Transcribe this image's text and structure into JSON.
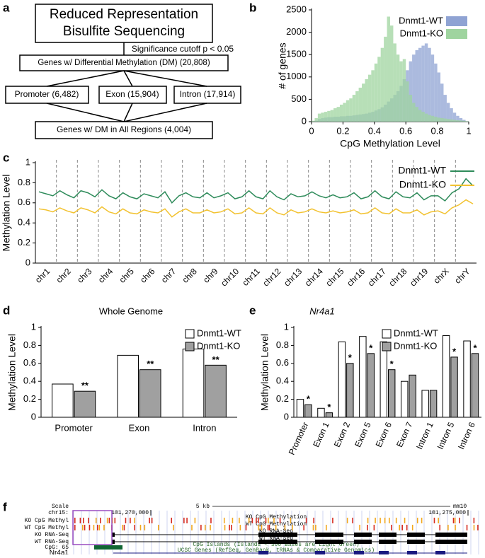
{
  "panels": [
    "a",
    "b",
    "c",
    "d",
    "e",
    "f"
  ],
  "flowchart": {
    "top": [
      "Reduced Representation",
      "Bisulfite Sequencing"
    ],
    "cutoff": "Significance cutoff p < 0.05",
    "dm": "Genes w/ Differential Methylation (DM) (20,808)",
    "regions": [
      "Promoter (6,482)",
      "Exon (15,904)",
      "Intron (17,914)"
    ],
    "all": "Genes w/ DM in All Regions (4,004)"
  },
  "chart_data": [
    {
      "type": "histogram",
      "xlabel": "CpG Methylation Level",
      "ylabel": "# of genes",
      "bins": [
        0,
        0.02,
        0.04,
        0.06,
        0.08,
        0.1,
        0.12,
        0.14,
        0.16,
        0.18,
        0.2,
        0.22,
        0.24,
        0.26,
        0.28,
        0.3,
        0.32,
        0.34,
        0.36,
        0.38,
        0.4,
        0.42,
        0.44,
        0.46,
        0.48,
        0.5,
        0.52,
        0.54,
        0.56,
        0.58,
        0.6,
        0.62,
        0.64,
        0.66,
        0.68,
        0.7,
        0.72,
        0.74,
        0.76,
        0.78,
        0.8,
        0.82,
        0.84,
        0.86,
        0.88,
        0.9,
        0.92,
        0.94,
        0.96,
        0.98,
        1
      ],
      "series": [
        {
          "name": "Dnmt1-WT",
          "color": "#8fa3d3",
          "values": [
            5,
            20,
            60,
            80,
            90,
            100,
            100,
            110,
            110,
            120,
            120,
            130,
            130,
            140,
            150,
            160,
            170,
            180,
            200,
            220,
            250,
            280,
            320,
            380,
            450,
            520,
            600,
            680,
            800,
            950,
            1150,
            1350,
            1500,
            1600,
            1650,
            1700,
            1750,
            1650,
            1500,
            1300,
            1100,
            850,
            600,
            420,
            300,
            200,
            130,
            80,
            40,
            10
          ]
        },
        {
          "name": "Dnmt1-KO",
          "color": "#9fd49f",
          "values": [
            20,
            80,
            180,
            200,
            220,
            240,
            260,
            300,
            330,
            380,
            420,
            480,
            520,
            600,
            680,
            760,
            850,
            950,
            1050,
            1150,
            1300,
            1450,
            1650,
            1900,
            2350,
            2150,
            1750,
            1500,
            1350,
            1400,
            900,
            600,
            420,
            330,
            260,
            220,
            180,
            150,
            130,
            110,
            90,
            80,
            70,
            60,
            50,
            40,
            30,
            25,
            20,
            10
          ]
        }
      ],
      "xlim": [
        0,
        1
      ],
      "xticks": [
        0,
        0.2,
        0.4,
        0.6,
        0.8,
        1
      ],
      "ylim": [
        0,
        2500
      ],
      "yticks": [
        0,
        500,
        1000,
        1500,
        2000,
        2500
      ],
      "legend": "upper right"
    },
    {
      "type": "line",
      "ylabel": "Methylation Level",
      "categories": [
        "chr1",
        "chr2",
        "chr3",
        "chr4",
        "chr5",
        "chr6",
        "chr7",
        "chr8",
        "chr9",
        "chr10",
        "chr11",
        "chr12",
        "chr13",
        "chr14",
        "chr15",
        "chr16",
        "chr17",
        "chr18",
        "chr19",
        "chrX",
        "chrY"
      ],
      "series": [
        {
          "name": "Dnmt1-WT",
          "color": "#2e8b5a",
          "values": [
            [
              0.71,
              0.69,
              0.67
            ],
            [
              0.72,
              0.68,
              0.65
            ],
            [
              0.72,
              0.7,
              0.66
            ],
            [
              0.73,
              0.67,
              0.64
            ],
            [
              0.7,
              0.66,
              0.64
            ],
            [
              0.69,
              0.67,
              0.65
            ],
            [
              0.71,
              0.6,
              0.67
            ],
            [
              0.7,
              0.66,
              0.65
            ],
            [
              0.7,
              0.65,
              0.67
            ],
            [
              0.7,
              0.64,
              0.66
            ],
            [
              0.72,
              0.66,
              0.64
            ],
            [
              0.72,
              0.66,
              0.63
            ],
            [
              0.69,
              0.66,
              0.67
            ],
            [
              0.71,
              0.67,
              0.65
            ],
            [
              0.68,
              0.65,
              0.66
            ],
            [
              0.7,
              0.64,
              0.66
            ],
            [
              0.72,
              0.66,
              0.64
            ],
            [
              0.71,
              0.66,
              0.65
            ],
            [
              0.7,
              0.63,
              0.67
            ],
            [
              0.67,
              0.62,
              0.7
            ],
            [
              0.74,
              0.84,
              0.77
            ]
          ]
        },
        {
          "name": "Dnmt1-KO",
          "color": "#f2c230",
          "values": [
            [
              0.54,
              0.53,
              0.51
            ],
            [
              0.55,
              0.52,
              0.5
            ],
            [
              0.55,
              0.53,
              0.5
            ],
            [
              0.56,
              0.51,
              0.49
            ],
            [
              0.54,
              0.5,
              0.49
            ],
            [
              0.53,
              0.51,
              0.5
            ],
            [
              0.54,
              0.46,
              0.51
            ],
            [
              0.54,
              0.5,
              0.5
            ],
            [
              0.53,
              0.5,
              0.51
            ],
            [
              0.54,
              0.49,
              0.5
            ],
            [
              0.55,
              0.5,
              0.49
            ],
            [
              0.55,
              0.5,
              0.48
            ],
            [
              0.53,
              0.5,
              0.51
            ],
            [
              0.54,
              0.51,
              0.5
            ],
            [
              0.52,
              0.5,
              0.51
            ],
            [
              0.53,
              0.49,
              0.5
            ],
            [
              0.55,
              0.5,
              0.49
            ],
            [
              0.54,
              0.5,
              0.5
            ],
            [
              0.53,
              0.48,
              0.51
            ],
            [
              0.52,
              0.49,
              0.55
            ],
            [
              0.58,
              0.63,
              0.59
            ]
          ]
        }
      ],
      "ylim": [
        0,
        1
      ],
      "yticks": [
        0,
        0.2,
        0.4,
        0.6,
        0.8,
        1
      ],
      "legend": "upper right"
    },
    {
      "type": "bar",
      "title": "Whole Genome",
      "ylabel": "Methylation Level",
      "categories": [
        "Promoter",
        "Exon",
        "Intron"
      ],
      "series": [
        {
          "name": "Dnmt1-WT",
          "color": "#ffffff",
          "values": [
            0.37,
            0.69,
            0.76
          ]
        },
        {
          "name": "Dnmt1-KO",
          "color": "#a0a0a0",
          "values": [
            0.29,
            0.53,
            0.58
          ],
          "significance": [
            "**",
            "**",
            "**"
          ]
        }
      ],
      "ylim": [
        0,
        1
      ],
      "yticks": [
        0,
        0.2,
        0.4,
        0.6,
        0.8,
        1
      ],
      "legend": "upper right"
    },
    {
      "type": "bar",
      "title": "Nr4a1",
      "ylabel": "Methylation Level",
      "categories": [
        "Promoter",
        "Exon 1",
        "Exon 2",
        "Exon 5",
        "Exon 6",
        "Exon 7",
        "Intron 1",
        "Intron 5",
        "Intron 6"
      ],
      "series": [
        {
          "name": "Dnmt1-WT",
          "color": "#ffffff",
          "values": [
            0.2,
            0.1,
            0.84,
            0.9,
            0.84,
            0.4,
            0.3,
            0.91,
            0.85
          ]
        },
        {
          "name": "Dnmt1-KO",
          "color": "#a0a0a0",
          "values": [
            0.14,
            0.05,
            0.6,
            0.71,
            0.53,
            0.47,
            0.3,
            0.67,
            0.71
          ],
          "significance": [
            "*",
            "*",
            "*",
            "*",
            "*",
            null,
            null,
            "*",
            "*"
          ]
        }
      ],
      "ylim": [
        0,
        1
      ],
      "yticks": [
        0,
        0.2,
        0.4,
        0.6,
        0.8,
        1
      ],
      "legend": "upper right"
    }
  ],
  "browser": {
    "scale": "Scale",
    "chrom": "chr15:",
    "span": "5 kb",
    "assembly": "mm10",
    "positions": [
      "101,270,000",
      "101,275,000"
    ],
    "track_titles": [
      "KO CpG Methylation",
      "WT CpG Methylation",
      "KO RNA-Seq",
      "WT RNA-Seq",
      "CpG Islands (Islands < 300 Bases are Light Green)",
      "UCSC Genes (RefSeq, GenBank, tRNAs & Comparative Genomics)"
    ],
    "track_labels": [
      "KO CpG Methyl",
      "WT CpG Methyl",
      "KO RNA-Seq",
      "WT RNA-Seq",
      "CpG: 65",
      "Nr4a1"
    ]
  }
}
